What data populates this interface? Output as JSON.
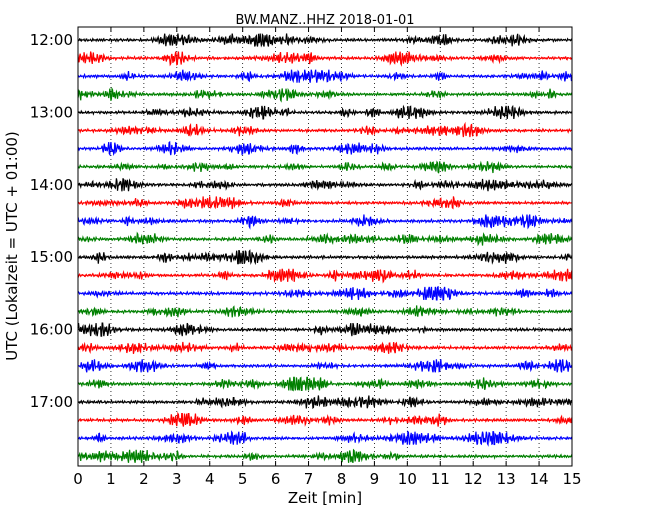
{
  "chart_data": {
    "type": "line",
    "title": "BW.MANZ..HHZ 2018-01-01",
    "xlabel": "Zeit  [min]",
    "ylabel": "UTC (Lokalzeit = UTC + 01:00)",
    "xlim": [
      0,
      15
    ],
    "x_ticks": [
      0,
      1,
      2,
      3,
      4,
      5,
      6,
      7,
      8,
      9,
      10,
      11,
      12,
      13,
      14,
      15
    ],
    "y_tick_labels": [
      "12:00",
      "13:00",
      "14:00",
      "15:00",
      "16:00",
      "17:00"
    ],
    "start_time": "12:00",
    "end_time": "18:00",
    "interval_minutes": 15,
    "color_cycle": [
      "#000000",
      "#ff0000",
      "#0000ff",
      "#008000"
    ],
    "grid": "vertical dotted",
    "traces": [
      {
        "label": "12:00",
        "color": "#000000"
      },
      {
        "label": "12:15",
        "color": "#ff0000"
      },
      {
        "label": "12:30",
        "color": "#0000ff"
      },
      {
        "label": "12:45",
        "color": "#008000"
      },
      {
        "label": "13:00",
        "color": "#000000"
      },
      {
        "label": "13:15",
        "color": "#ff0000"
      },
      {
        "label": "13:30",
        "color": "#0000ff"
      },
      {
        "label": "13:45",
        "color": "#008000"
      },
      {
        "label": "14:00",
        "color": "#000000"
      },
      {
        "label": "14:15",
        "color": "#ff0000"
      },
      {
        "label": "14:30",
        "color": "#0000ff"
      },
      {
        "label": "14:45",
        "color": "#008000"
      },
      {
        "label": "15:00",
        "color": "#000000"
      },
      {
        "label": "15:15",
        "color": "#ff0000"
      },
      {
        "label": "15:30",
        "color": "#0000ff"
      },
      {
        "label": "15:45",
        "color": "#008000"
      },
      {
        "label": "16:00",
        "color": "#000000"
      },
      {
        "label": "16:15",
        "color": "#ff0000"
      },
      {
        "label": "16:30",
        "color": "#0000ff"
      },
      {
        "label": "16:45",
        "color": "#008000"
      },
      {
        "label": "17:00",
        "color": "#000000"
      },
      {
        "label": "17:15",
        "color": "#ff0000"
      },
      {
        "label": "17:30",
        "color": "#0000ff"
      },
      {
        "label": "17:45",
        "color": "#008000"
      }
    ]
  }
}
